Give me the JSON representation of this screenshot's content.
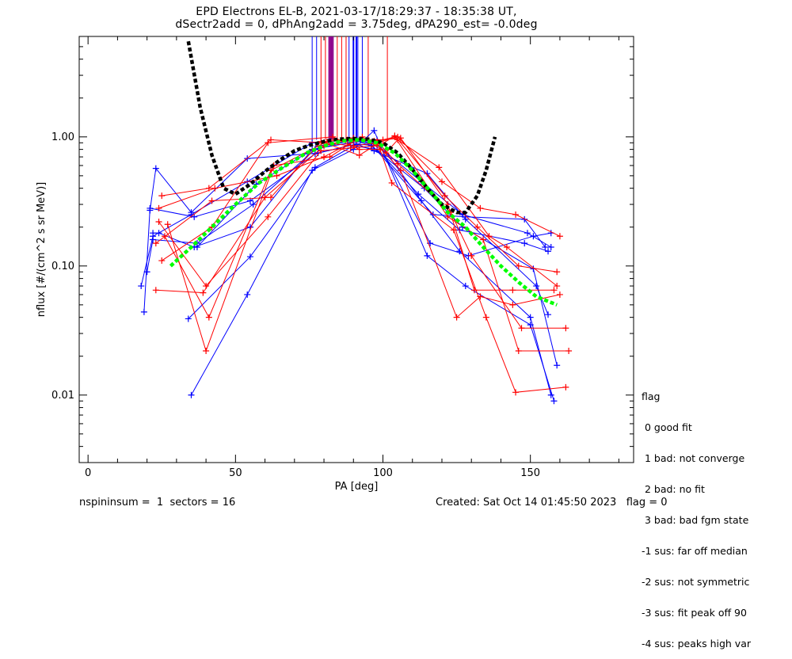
{
  "title_line1": "EPD Electrons EL-B, 2021-03-17/18:29:37 - 18:35:38 UT,",
  "title_line2": "dSectr2add = 0, dPhAng2add = 3.75deg, dPA290_est=  -0.0deg",
  "legend": {
    "header": "flag",
    "items": [
      " 0 good fit",
      " 1 bad: not converge",
      " 2 bad: no fit",
      " 3 bad: bad fgm state",
      "-1 sus: far off median",
      "-2 sus: not symmetric",
      "-3 sus: fit peak off 90",
      "-4 sus: peaks high var"
    ]
  },
  "footer": {
    "left": "nspininsum =  1  sectors = 16",
    "right": "Created: Sat Oct 14 01:45:50 2023   flag = 0"
  },
  "colors": {
    "red": "#ff0000",
    "blue": "#0000ff",
    "purple": "#8b008b",
    "green": "#00ff00",
    "black": "#000000"
  },
  "chart_data": {
    "type": "line",
    "xlabel": "PA [deg]",
    "ylabel": "nflux [#/(cm^2 s sr MeV)]",
    "xlim": [
      -3,
      185
    ],
    "ylim": [
      0.003,
      6
    ],
    "ylog": true,
    "xticks": [
      0,
      50,
      100,
      150
    ],
    "xtick_labels": [
      "0",
      "50",
      "100",
      "150"
    ],
    "yticks": [
      0.01,
      0.1,
      1.0
    ],
    "ytick_labels": [
      "0.01",
      "0.10",
      "1.00"
    ],
    "vlines": [
      {
        "x": 76,
        "color": "blue"
      },
      {
        "x": 77.5,
        "color": "blue"
      },
      {
        "x": 79,
        "color": "red"
      },
      {
        "x": 80.5,
        "color": "red"
      },
      {
        "x": 81.8,
        "color": "purple"
      },
      {
        "x": 82.4,
        "color": "purple"
      },
      {
        "x": 83,
        "color": "purple"
      },
      {
        "x": 84.5,
        "color": "red"
      },
      {
        "x": 86,
        "color": "red"
      },
      {
        "x": 87.5,
        "color": "red"
      },
      {
        "x": 88.5,
        "color": "blue"
      },
      {
        "x": 90,
        "color": "blue"
      },
      {
        "x": 91,
        "color": "blue"
      },
      {
        "x": 91.5,
        "color": "blue"
      },
      {
        "x": 93,
        "color": "blue"
      },
      {
        "x": 95,
        "color": "red"
      },
      {
        "x": 101.5,
        "color": "red"
      }
    ],
    "series": [
      {
        "color": "blue",
        "x": [
          18,
          22,
          35,
          54,
          76,
          88,
          97,
          113,
          127,
          149,
          157
        ],
        "y": [
          0.07,
          0.17,
          0.25,
          0.45,
          0.9,
          0.95,
          0.9,
          0.45,
          0.25,
          0.18,
          0.14
        ]
      },
      {
        "color": "blue",
        "x": [
          19,
          21,
          36,
          55,
          77,
          89,
          98,
          112,
          126,
          148,
          156
        ],
        "y": [
          0.044,
          0.28,
          0.24,
          0.32,
          0.74,
          0.86,
          0.8,
          0.36,
          0.19,
          0.15,
          0.13
        ]
      },
      {
        "color": "blue",
        "x": [
          20,
          22,
          37,
          56,
          77,
          90,
          96,
          114,
          127,
          151,
          159
        ],
        "y": [
          0.09,
          0.16,
          0.15,
          0.3,
          0.8,
          0.95,
          0.85,
          0.4,
          0.2,
          0.095,
          0.017
        ]
      },
      {
        "color": "blue",
        "x": [
          21,
          23,
          35,
          54,
          78,
          91,
          97,
          115,
          128,
          152,
          156
        ],
        "y": [
          0.27,
          0.57,
          0.26,
          0.68,
          0.75,
          0.88,
          0.78,
          0.52,
          0.23,
          0.07,
          0.042
        ]
      },
      {
        "color": "blue",
        "x": [
          22,
          24,
          36,
          55,
          76,
          89,
          98,
          113,
          126,
          150,
          157
        ],
        "y": [
          0.18,
          0.18,
          0.14,
          0.2,
          0.8,
          0.9,
          0.95,
          0.32,
          0.13,
          0.04,
          0.01
        ]
      },
      {
        "color": "blue",
        "x": [
          35,
          54,
          76,
          90,
          97,
          115,
          128,
          150,
          158
        ],
        "y": [
          0.01,
          0.06,
          0.55,
          0.8,
          1.12,
          0.12,
          0.07,
          0.035,
          0.009
        ]
      },
      {
        "color": "blue",
        "x": [
          34,
          55,
          77,
          91,
          99,
          116,
          129,
          151,
          157
        ],
        "y": [
          0.039,
          0.118,
          0.58,
          0.88,
          0.85,
          0.15,
          0.12,
          0.17,
          0.18
        ]
      },
      {
        "color": "blue",
        "x": [
          37,
          57,
          78,
          90,
          96,
          117,
          128,
          148,
          155
        ],
        "y": [
          0.14,
          0.43,
          0.85,
          0.95,
          0.88,
          0.25,
          0.24,
          0.23,
          0.14
        ]
      },
      {
        "color": "red",
        "x": [
          25,
          41,
          62,
          80,
          90,
          98,
          105,
          120,
          133,
          145,
          160
        ],
        "y": [
          0.35,
          0.4,
          0.95,
          0.9,
          0.85,
          0.9,
          1.0,
          0.45,
          0.28,
          0.25,
          0.17
        ]
      },
      {
        "color": "red",
        "x": [
          24,
          40,
          61,
          79,
          89,
          99,
          104,
          121,
          132,
          146,
          159
        ],
        "y": [
          0.22,
          0.07,
          0.24,
          0.78,
          0.82,
          0.86,
          1.02,
          0.35,
          0.2,
          0.1,
          0.09
        ]
      },
      {
        "color": "red",
        "x": [
          23,
          39,
          60,
          80,
          88,
          97,
          106,
          122,
          131,
          144,
          158
        ],
        "y": [
          0.065,
          0.062,
          0.34,
          0.85,
          0.95,
          0.93,
          0.98,
          0.3,
          0.065,
          0.065,
          0.065
        ]
      },
      {
        "color": "red",
        "x": [
          26,
          41,
          62,
          81,
          90,
          98,
          105,
          123,
          130,
          147,
          162
        ],
        "y": [
          0.17,
          0.04,
          0.55,
          0.92,
          0.98,
          0.92,
          0.62,
          0.26,
          0.12,
          0.033,
          0.033
        ]
      },
      {
        "color": "red",
        "x": [
          27,
          40,
          63,
          82,
          91,
          100,
          104,
          122,
          134,
          146,
          163
        ],
        "y": [
          0.21,
          0.022,
          0.6,
          0.7,
          0.95,
          0.95,
          1.0,
          0.24,
          0.16,
          0.022,
          0.022
        ]
      },
      {
        "color": "red",
        "x": [
          25,
          42,
          61,
          83,
          92,
          99,
          103,
          124,
          135,
          145,
          162
        ],
        "y": [
          0.11,
          0.2,
          0.9,
          1.0,
          0.8,
          0.8,
          0.44,
          0.19,
          0.04,
          0.0105,
          0.0115
        ]
      },
      {
        "color": "red",
        "x": [
          24,
          43,
          64,
          80,
          93,
          101,
          105,
          119,
          136,
          142,
          159
        ],
        "y": [
          0.28,
          0.4,
          0.5,
          0.7,
          1.0,
          0.75,
          0.95,
          0.58,
          0.17,
          0.14,
          0.07
        ]
      },
      {
        "color": "red",
        "x": [
          23,
          42,
          62,
          79,
          92,
          98,
          106,
          125,
          133,
          144,
          160
        ],
        "y": [
          0.15,
          0.32,
          0.34,
          0.92,
          0.72,
          0.88,
          0.55,
          0.04,
          0.058,
          0.05,
          0.06
        ]
      }
    ],
    "fit_curves": [
      {
        "color": "black",
        "dashed": true,
        "x": [
          34,
          38,
          42,
          46,
          50,
          55,
          60,
          65,
          70,
          75,
          80,
          85,
          90,
          95,
          100,
          105,
          110,
          115,
          120,
          125,
          128,
          132,
          135,
          138
        ],
        "y": [
          5.5,
          1.7,
          0.72,
          0.4,
          0.36,
          0.43,
          0.54,
          0.66,
          0.78,
          0.86,
          0.92,
          0.96,
          0.97,
          0.96,
          0.9,
          0.75,
          0.56,
          0.4,
          0.3,
          0.26,
          0.26,
          0.35,
          0.55,
          1.0
        ]
      },
      {
        "color": "green",
        "dashed": true,
        "x": [
          28,
          35,
          42,
          50,
          58,
          66,
          74,
          80,
          86,
          92,
          98,
          104,
          110,
          116,
          122,
          128,
          134,
          140,
          146,
          152,
          159
        ],
        "y": [
          0.1,
          0.14,
          0.2,
          0.3,
          0.44,
          0.58,
          0.75,
          0.85,
          0.93,
          0.95,
          0.9,
          0.75,
          0.55,
          0.38,
          0.26,
          0.2,
          0.14,
          0.1,
          0.075,
          0.058,
          0.05
        ]
      }
    ]
  }
}
